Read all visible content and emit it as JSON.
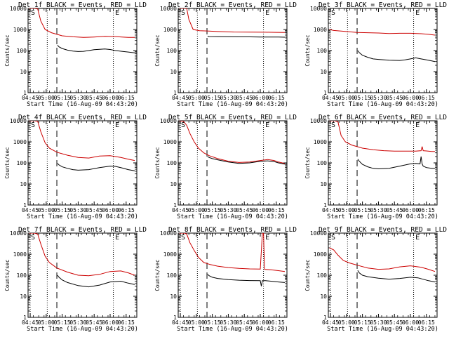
{
  "chart_data": {
    "type": "line",
    "shared": {
      "xlabel": "Start Time (16-Aug-09 04:43:20)",
      "ylabel": "Counts/sec",
      "xlim": [
        -2,
        100
      ],
      "ylim_log10": [
        0,
        4
      ],
      "x_ticks": [
        0,
        15,
        30,
        45,
        60,
        75,
        90
      ],
      "x_tick_labels": [
        "04:45",
        "05:00",
        "05:15",
        "05:30",
        "05:45",
        "06:00",
        "06:15"
      ],
      "y_ticks": [
        1,
        10,
        100,
        1000,
        10000
      ],
      "y_tick_labels": [
        "1",
        "10",
        "100",
        "1000",
        "10000"
      ],
      "markers": {
        "dotted_lines_x": [
          0,
          16,
          78
        ],
        "dashed_line_x": [
          25
        ],
        "corner_letters": [
          {
            "x": 0,
            "text": "S"
          },
          {
            "x": 79,
            "text": "E"
          }
        ]
      },
      "legend_colors": {
        "events": "#000000",
        "lld": "#cc0000"
      }
    },
    "panels": [
      {
        "title": "Det 1f BLACK = Events, RED = LLD",
        "lld": {
          "x": [
            -1,
            4,
            7,
            10,
            14,
            20,
            30,
            40,
            50,
            60,
            70,
            80,
            86,
            92,
            98
          ],
          "y": [
            10000,
            10000,
            9500,
            2500,
            1000,
            700,
            500,
            450,
            420,
            440,
            470,
            460,
            440,
            420,
            420
          ]
        },
        "events": {
          "x": [
            25.6,
            27,
            30,
            35,
            40,
            45,
            50,
            55,
            60,
            65,
            70,
            75,
            80,
            86,
            92,
            98
          ],
          "y": [
            180,
            150,
            125,
            105,
            95,
            90,
            92,
            100,
            110,
            115,
            118,
            112,
            100,
            92,
            85,
            78
          ]
        }
      },
      {
        "title": "Det 2f BLACK = Events, RED = LLD",
        "lld": {
          "x": [
            -1,
            4,
            6,
            8,
            12,
            18,
            25,
            35,
            50,
            65,
            80,
            90,
            98
          ],
          "y": [
            10000,
            10000,
            9800,
            3000,
            1000,
            880,
            850,
            800,
            760,
            750,
            740,
            730,
            720
          ]
        },
        "events": {
          "x": [
            25.6,
            27,
            35,
            45,
            55,
            65,
            75,
            85,
            92,
            98
          ],
          "y": [
            480,
            460,
            455,
            450,
            448,
            445,
            440,
            438,
            435,
            430
          ]
        }
      },
      {
        "title": "Det 3f BLACK = Events, RED = LLD",
        "lld": {
          "x": [
            -1,
            3,
            8,
            15,
            25,
            35,
            45,
            55,
            65,
            75,
            85,
            92,
            98
          ],
          "y": [
            1000,
            900,
            860,
            800,
            720,
            700,
            680,
            640,
            660,
            660,
            630,
            590,
            540
          ]
        },
        "events": {
          "x": [
            25.6,
            27,
            30,
            35,
            40,
            45,
            55,
            65,
            70,
            75,
            80,
            85,
            90,
            95,
            98
          ],
          "y": [
            100,
            80,
            60,
            48,
            40,
            38,
            35,
            34,
            36,
            40,
            45,
            40,
            36,
            32,
            30
          ]
        }
      },
      {
        "title": "Det 4f BLACK = Events, RED = LLD",
        "lld": {
          "x": [
            -1,
            4,
            7,
            10,
            14,
            18,
            25,
            35,
            45,
            55,
            65,
            75,
            85,
            92,
            98
          ],
          "y": [
            10000,
            10000,
            9500,
            3000,
            900,
            500,
            320,
            230,
            180,
            170,
            210,
            220,
            180,
            150,
            130
          ]
        },
        "events": {
          "x": [
            25.6,
            27,
            30,
            35,
            40,
            45,
            55,
            65,
            75,
            80,
            86,
            92,
            98
          ],
          "y": [
            95,
            80,
            65,
            55,
            48,
            45,
            48,
            60,
            70,
            68,
            58,
            48,
            42
          ]
        }
      },
      {
        "title": "Det 5f BLACK = Events, RED = LLD",
        "lld": {
          "x": [
            -1,
            3,
            6,
            9,
            13,
            17,
            22,
            27,
            35,
            45,
            55,
            65,
            75,
            82,
            88,
            92,
            98
          ],
          "y": [
            10000,
            9500,
            6000,
            2500,
            1000,
            500,
            300,
            220,
            160,
            120,
            105,
            110,
            130,
            145,
            130,
            110,
            95
          ]
        },
        "events": {
          "x": [
            25.6,
            27,
            30,
            35,
            45,
            55,
            65,
            75,
            82,
            88,
            92,
            98
          ],
          "y": [
            200,
            180,
            160,
            140,
            110,
            95,
            100,
            118,
            125,
            115,
            100,
            88
          ]
        }
      },
      {
        "title": "Det 6f BLACK = Events, RED = LLD",
        "lld": {
          "x": [
            -1,
            4,
            7,
            10,
            14,
            20,
            30,
            40,
            50,
            60,
            70,
            80,
            85,
            86,
            87,
            90,
            95,
            98
          ],
          "y": [
            10000,
            10000,
            9000,
            2000,
            1000,
            700,
            500,
            420,
            380,
            360,
            360,
            360,
            380,
            600,
            380,
            370,
            350,
            350
          ]
        },
        "events": {
          "x": [
            25.6,
            27,
            30,
            35,
            40,
            45,
            55,
            65,
            75,
            80,
            84,
            85,
            86,
            87,
            90,
            95,
            98
          ],
          "y": [
            150,
            120,
            85,
            65,
            55,
            52,
            55,
            70,
            90,
            95,
            90,
            200,
            90,
            70,
            60,
            55,
            55
          ]
        }
      },
      {
        "title": "Det 7f BLACK = Events, RED = LLD",
        "lld": {
          "x": [
            -1,
            4,
            7,
            10,
            14,
            18,
            25,
            35,
            45,
            55,
            65,
            75,
            85,
            92,
            98
          ],
          "y": [
            10000,
            10000,
            9000,
            3000,
            800,
            400,
            220,
            140,
            100,
            95,
            110,
            150,
            160,
            130,
            100
          ]
        },
        "events": {
          "x": [
            25.6,
            27,
            30,
            35,
            45,
            55,
            65,
            75,
            85,
            92,
            98
          ],
          "y": [
            100,
            80,
            60,
            45,
            32,
            28,
            34,
            48,
            52,
            42,
            36
          ]
        }
      },
      {
        "title": "Det 8f BLACK = Events, RED = LLD",
        "lld": {
          "x": [
            -1,
            4,
            6,
            9,
            13,
            17,
            22,
            28,
            35,
            45,
            55,
            65,
            75,
            77,
            78,
            79,
            85,
            92,
            98
          ],
          "y": [
            10000,
            10000,
            9000,
            3500,
            1500,
            700,
            400,
            320,
            270,
            230,
            210,
            200,
            195,
            10000,
            10000,
            190,
            180,
            165,
            150
          ]
        },
        "events": {
          "x": [
            25.6,
            27,
            30,
            35,
            45,
            55,
            65,
            75,
            76,
            77,
            80,
            85,
            92,
            98
          ],
          "y": [
            110,
            95,
            80,
            70,
            62,
            58,
            56,
            55,
            30,
            55,
            55,
            52,
            48,
            45
          ]
        }
      },
      {
        "title": "Det 9f BLACK = Events, RED = LLD",
        "lld": {
          "x": [
            -1,
            3,
            7,
            12,
            18,
            25,
            35,
            45,
            55,
            65,
            75,
            85,
            92,
            98
          ],
          "y": [
            2000,
            1600,
            900,
            500,
            380,
            300,
            220,
            190,
            200,
            250,
            280,
            240,
            190,
            150
          ]
        },
        "events": {
          "x": [
            25.6,
            27,
            30,
            35,
            45,
            55,
            65,
            75,
            82,
            88,
            92,
            98
          ],
          "y": [
            170,
            130,
            100,
            85,
            72,
            65,
            70,
            80,
            75,
            62,
            55,
            48
          ]
        }
      }
    ]
  }
}
